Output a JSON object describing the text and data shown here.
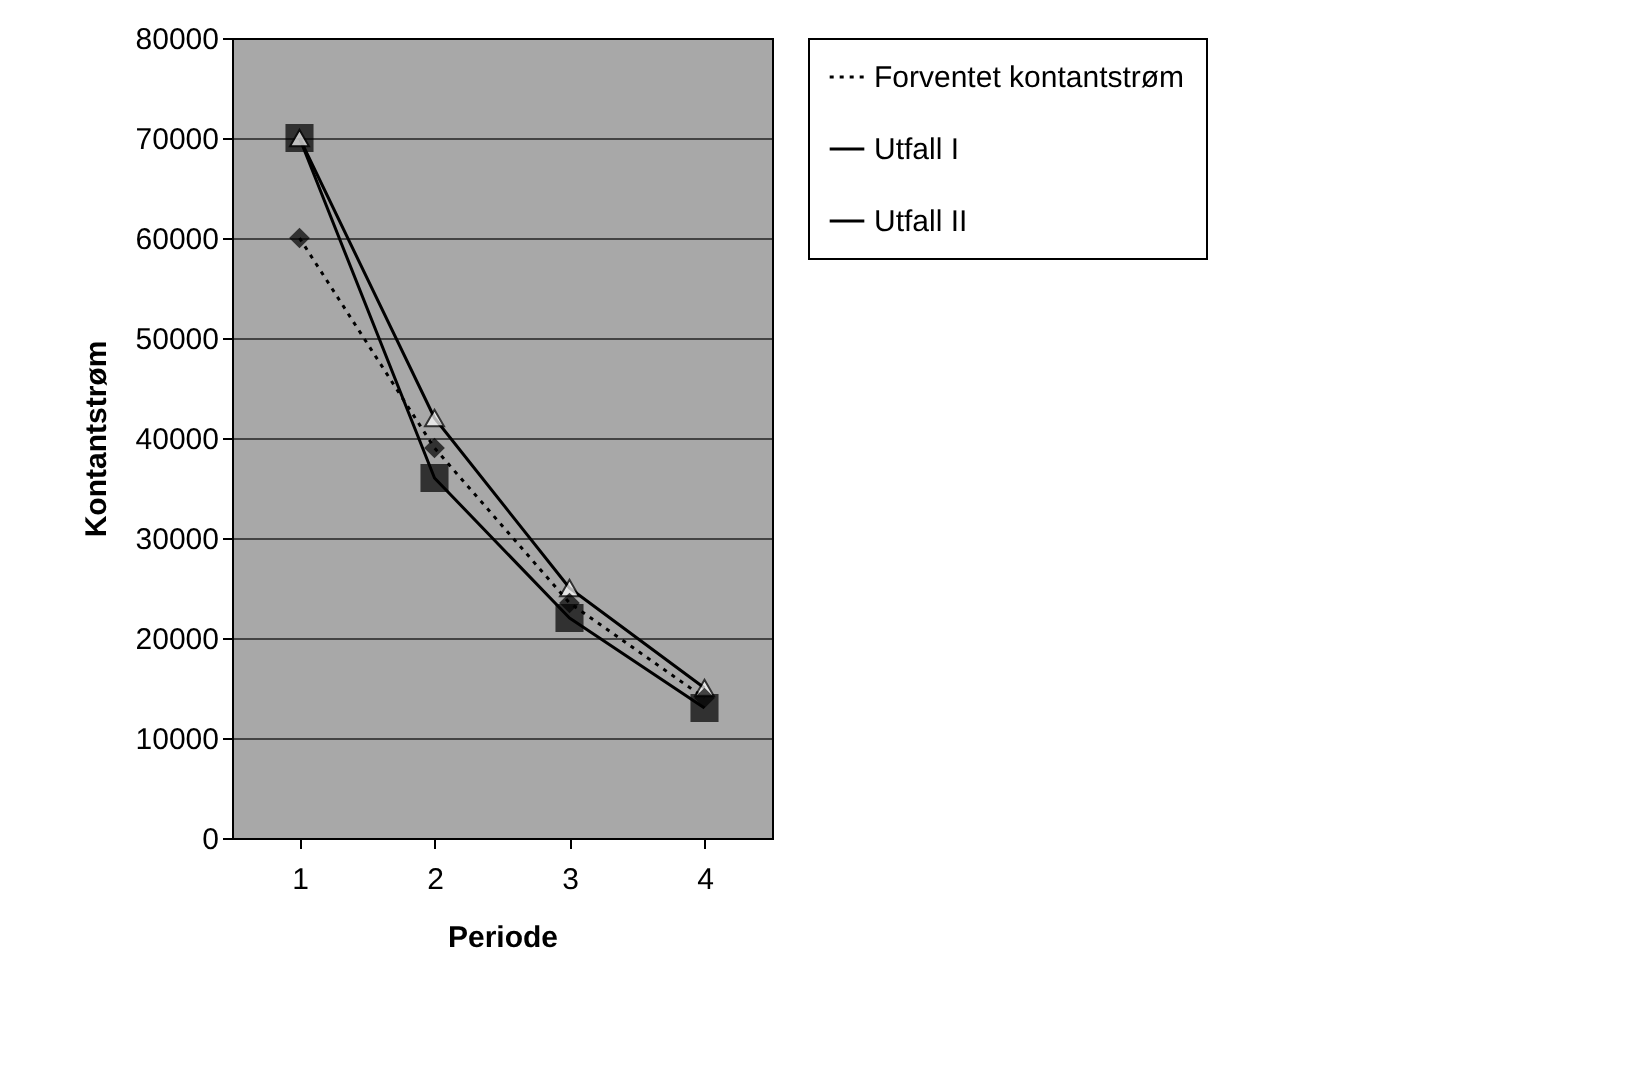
{
  "chart_data": {
    "type": "line",
    "xlabel": "Periode",
    "ylabel": "Kontantstrøm",
    "categories": [
      "1",
      "2",
      "3",
      "4"
    ],
    "series": [
      {
        "name": "Forventet kontantstrøm",
        "color": "#000000",
        "values": [
          60000,
          39000,
          23500,
          14000
        ],
        "marker": "diamond",
        "line_style": "dotted"
      },
      {
        "name": "Utfall I",
        "color": "#000000",
        "values": [
          70000,
          36000,
          22000,
          13000
        ],
        "marker": "square",
        "line_style": "solid"
      },
      {
        "name": "Utfall II",
        "color": "#000000",
        "values": [
          70000,
          42000,
          25000,
          15000
        ],
        "marker": "triangle",
        "line_style": "solid"
      }
    ],
    "ylim": [
      0,
      80000
    ],
    "yticks": [
      0,
      10000,
      20000,
      30000,
      40000,
      50000,
      60000,
      70000,
      80000
    ],
    "grid": "y",
    "legend": "top right"
  }
}
